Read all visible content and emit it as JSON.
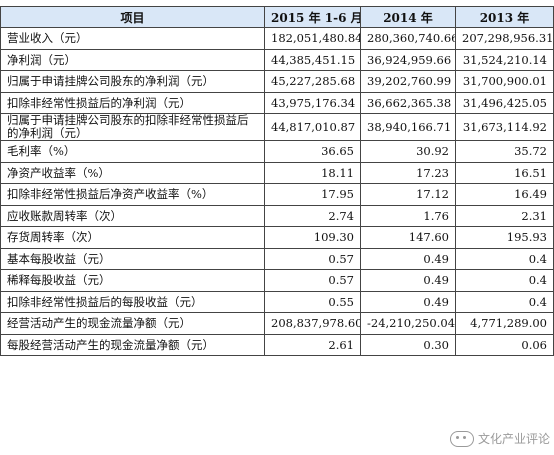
{
  "table": {
    "headers": [
      "项目",
      "2015 年 1-6 月",
      "2014 年",
      "2013 年"
    ],
    "rows": [
      {
        "label": "营业收入（元）",
        "v1": "182,051,480.84",
        "v2": "280,360,740.66",
        "v3": "207,298,956.31"
      },
      {
        "label": "净利润（元）",
        "v1": "44,385,451.15",
        "v2": "36,924,959.66",
        "v3": "31,524,210.14"
      },
      {
        "label": "归属于申请挂牌公司股东的净利润（元）",
        "v1": "45,227,285.68",
        "v2": "39,202,760.99",
        "v3": "31,700,900.01"
      },
      {
        "label": "扣除非经常性损益后的净利润（元）",
        "v1": "43,975,176.34",
        "v2": "36,662,365.38",
        "v3": "31,496,425.05"
      },
      {
        "label": "归属于申请挂牌公司股东的扣除非经常性损益后的净利润（元）",
        "v1": "44,817,010.87",
        "v2": "38,940,166.71",
        "v3": "31,673,114.92"
      },
      {
        "label": "毛利率（%）",
        "v1": "36.65",
        "v2": "30.92",
        "v3": "35.72"
      },
      {
        "label": "净资产收益率（%）",
        "v1": "18.11",
        "v2": "17.23",
        "v3": "16.51"
      },
      {
        "label": "扣除非经常性损益后净资产收益率（%）",
        "v1": "17.95",
        "v2": "17.12",
        "v3": "16.49"
      },
      {
        "label": "应收账款周转率（次）",
        "v1": "2.74",
        "v2": "1.76",
        "v3": "2.31"
      },
      {
        "label": "存货周转率（次）",
        "v1": "109.30",
        "v2": "147.60",
        "v3": "195.93"
      },
      {
        "label": "基本每股收益（元）",
        "v1": "0.57",
        "v2": "0.49",
        "v3": "0.4"
      },
      {
        "label": "稀释每股收益（元）",
        "v1": "0.57",
        "v2": "0.49",
        "v3": "0.4"
      },
      {
        "label": "扣除非经常性损益后的每股收益（元）",
        "v1": "0.55",
        "v2": "0.49",
        "v3": "0.4"
      },
      {
        "label": "经营活动产生的现金流量净额（元）",
        "v1": "208,837,978.60",
        "v2": "-24,210,250.04",
        "v3": "4,771,289.00"
      },
      {
        "label": "每股经营活动产生的现金流量净额（元）",
        "v1": "2.61",
        "v2": "0.30",
        "v3": "0.06"
      }
    ]
  },
  "watermark": {
    "text": "文化产业评论",
    "icon": "wechat-icon"
  },
  "colors": {
    "header_bg": "#d9e7f7",
    "border": "#444444",
    "text": "#111111"
  }
}
